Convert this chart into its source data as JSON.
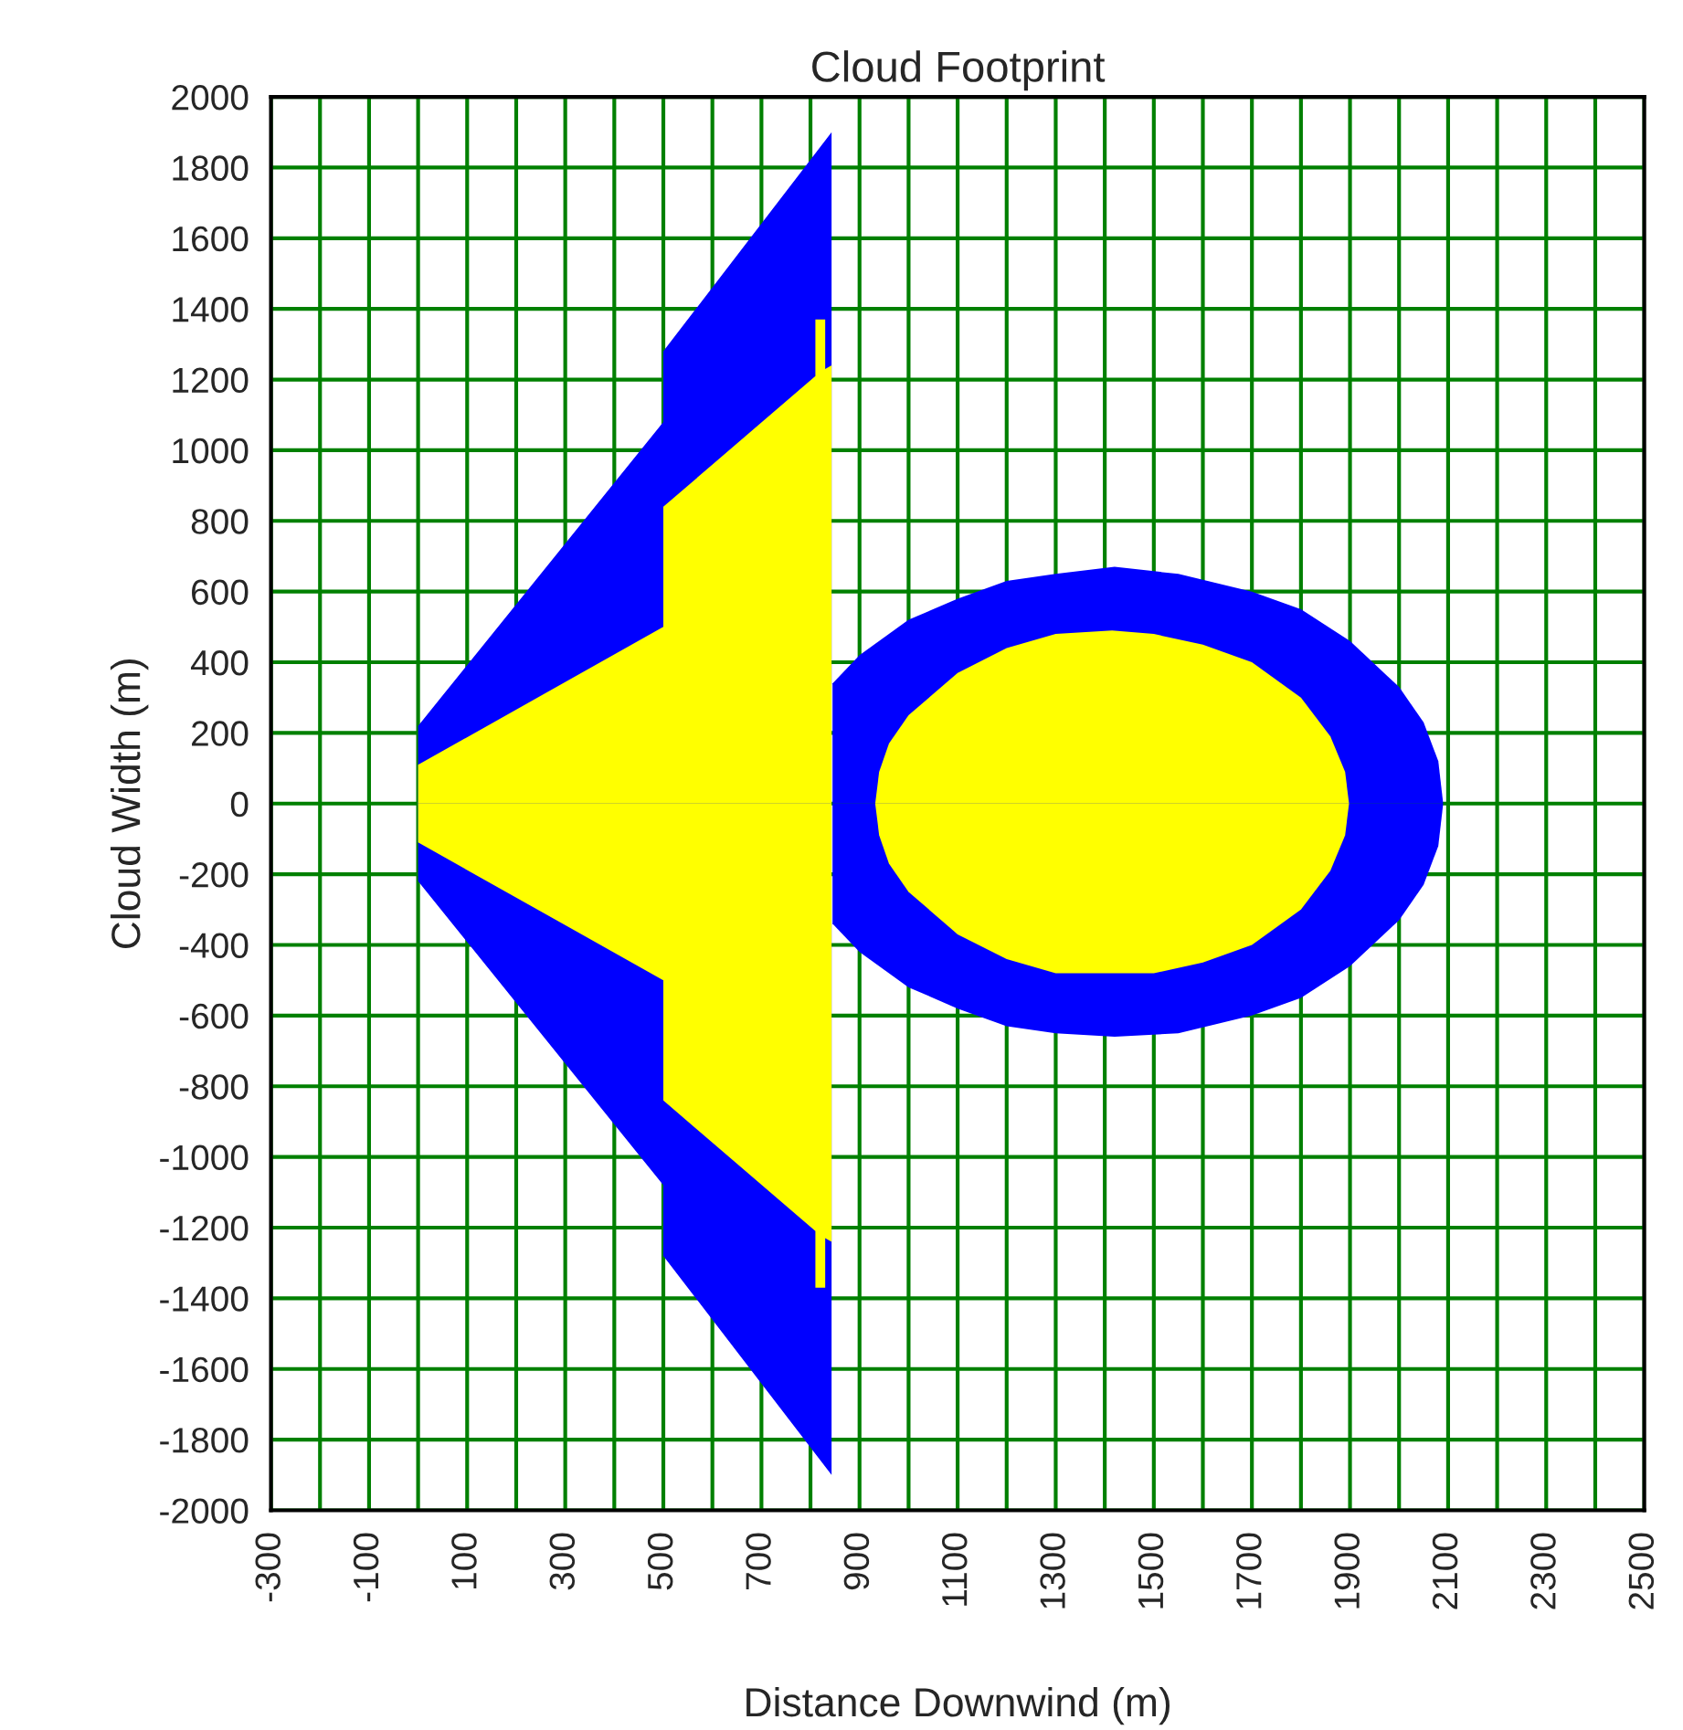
{
  "chart_data": {
    "type": "area",
    "title": "Cloud Footprint",
    "xlabel": "Distance Downwind (m)",
    "ylabel": "Cloud Width (m)",
    "xlim": [
      -300,
      2500
    ],
    "ylim": [
      -2000,
      2000
    ],
    "xticks": [
      -300,
      {
        "value": -200,
        "label": null
      },
      -100,
      {
        "value": 0,
        "label": null
      },
      100,
      {
        "value": 200,
        "label": null
      },
      300,
      {
        "value": 400,
        "label": null
      },
      500,
      {
        "value": 600,
        "label": null
      },
      700,
      {
        "value": 800,
        "label": null
      },
      900,
      {
        "value": 1000,
        "label": null
      },
      1100,
      {
        "value": 1200,
        "label": null
      },
      1300,
      {
        "value": 1400,
        "label": null
      },
      1500,
      {
        "value": 1600,
        "label": null
      },
      1700,
      {
        "value": 1800,
        "label": null
      },
      1900,
      {
        "value": 2000,
        "label": null
      },
      2100,
      {
        "value": 2200,
        "label": null
      },
      2300,
      {
        "value": 2400,
        "label": null
      },
      2500
    ],
    "yticks": [
      -2000,
      -1800,
      -1600,
      -1400,
      -1200,
      -1000,
      -800,
      -600,
      -400,
      -200,
      0,
      200,
      400,
      600,
      800,
      1000,
      1200,
      1400,
      1600,
      1800,
      2000
    ],
    "grid": true,
    "series": [
      {
        "color": "#0000ff",
        "x": [
          0,
          0,
          500,
          500,
          843,
          843
        ],
        "values": [
          0,
          220,
          1080,
          1280,
          1900,
          0
        ]
      },
      {
        "color": "#0000ff",
        "x": [
          0,
          0,
          500,
          500,
          843,
          843
        ],
        "values": [
          0,
          -220,
          -1080,
          -1280,
          -1900,
          0
        ]
      },
      {
        "color": "#0000ff",
        "x": [
          845,
          845,
          900,
          1000,
          1100,
          1200,
          1300,
          1420,
          1550,
          1700,
          1800,
          1900,
          2000,
          2050,
          2080,
          2090
        ],
        "values": [
          0,
          340,
          420,
          520,
          580,
          630,
          650,
          670,
          650,
          600,
          550,
          460,
          330,
          230,
          120,
          0
        ]
      },
      {
        "color": "#0000ff",
        "x": [
          845,
          845,
          900,
          1000,
          1100,
          1200,
          1300,
          1420,
          1550,
          1700,
          1800,
          1900,
          2000,
          2050,
          2080,
          2090
        ],
        "values": [
          0,
          -340,
          -420,
          -520,
          -580,
          -630,
          -650,
          -660,
          -650,
          -600,
          -550,
          -460,
          -330,
          -230,
          -120,
          0
        ]
      },
      {
        "color": "#ffff00",
        "x": [
          0,
          0,
          500,
          500,
          810,
          810,
          830,
          830,
          843,
          843
        ],
        "values": [
          0,
          110,
          500,
          840,
          1210,
          1370,
          1370,
          1230,
          1240,
          0
        ]
      },
      {
        "color": "#ffff00",
        "x": [
          0,
          0,
          500,
          500,
          810,
          810,
          830,
          830,
          843,
          843
        ],
        "values": [
          0,
          -110,
          -500,
          -840,
          -1210,
          -1370,
          -1370,
          -1230,
          -1240,
          0
        ]
      },
      {
        "color": "#ffff00",
        "x": [
          932,
          940,
          960,
          1000,
          1100,
          1200,
          1300,
          1415,
          1500,
          1600,
          1700,
          1800,
          1860,
          1890,
          1898
        ],
        "values": [
          0,
          90,
          170,
          250,
          370,
          440,
          480,
          490,
          480,
          450,
          400,
          300,
          190,
          90,
          0
        ]
      },
      {
        "color": "#ffff00",
        "x": [
          932,
          940,
          960,
          1000,
          1100,
          1200,
          1300,
          1415,
          1500,
          1600,
          1700,
          1800,
          1860,
          1890,
          1898
        ],
        "values": [
          0,
          -90,
          -170,
          -250,
          -370,
          -440,
          -480,
          -480,
          -480,
          -450,
          -400,
          -300,
          -190,
          -90,
          0
        ]
      }
    ]
  }
}
